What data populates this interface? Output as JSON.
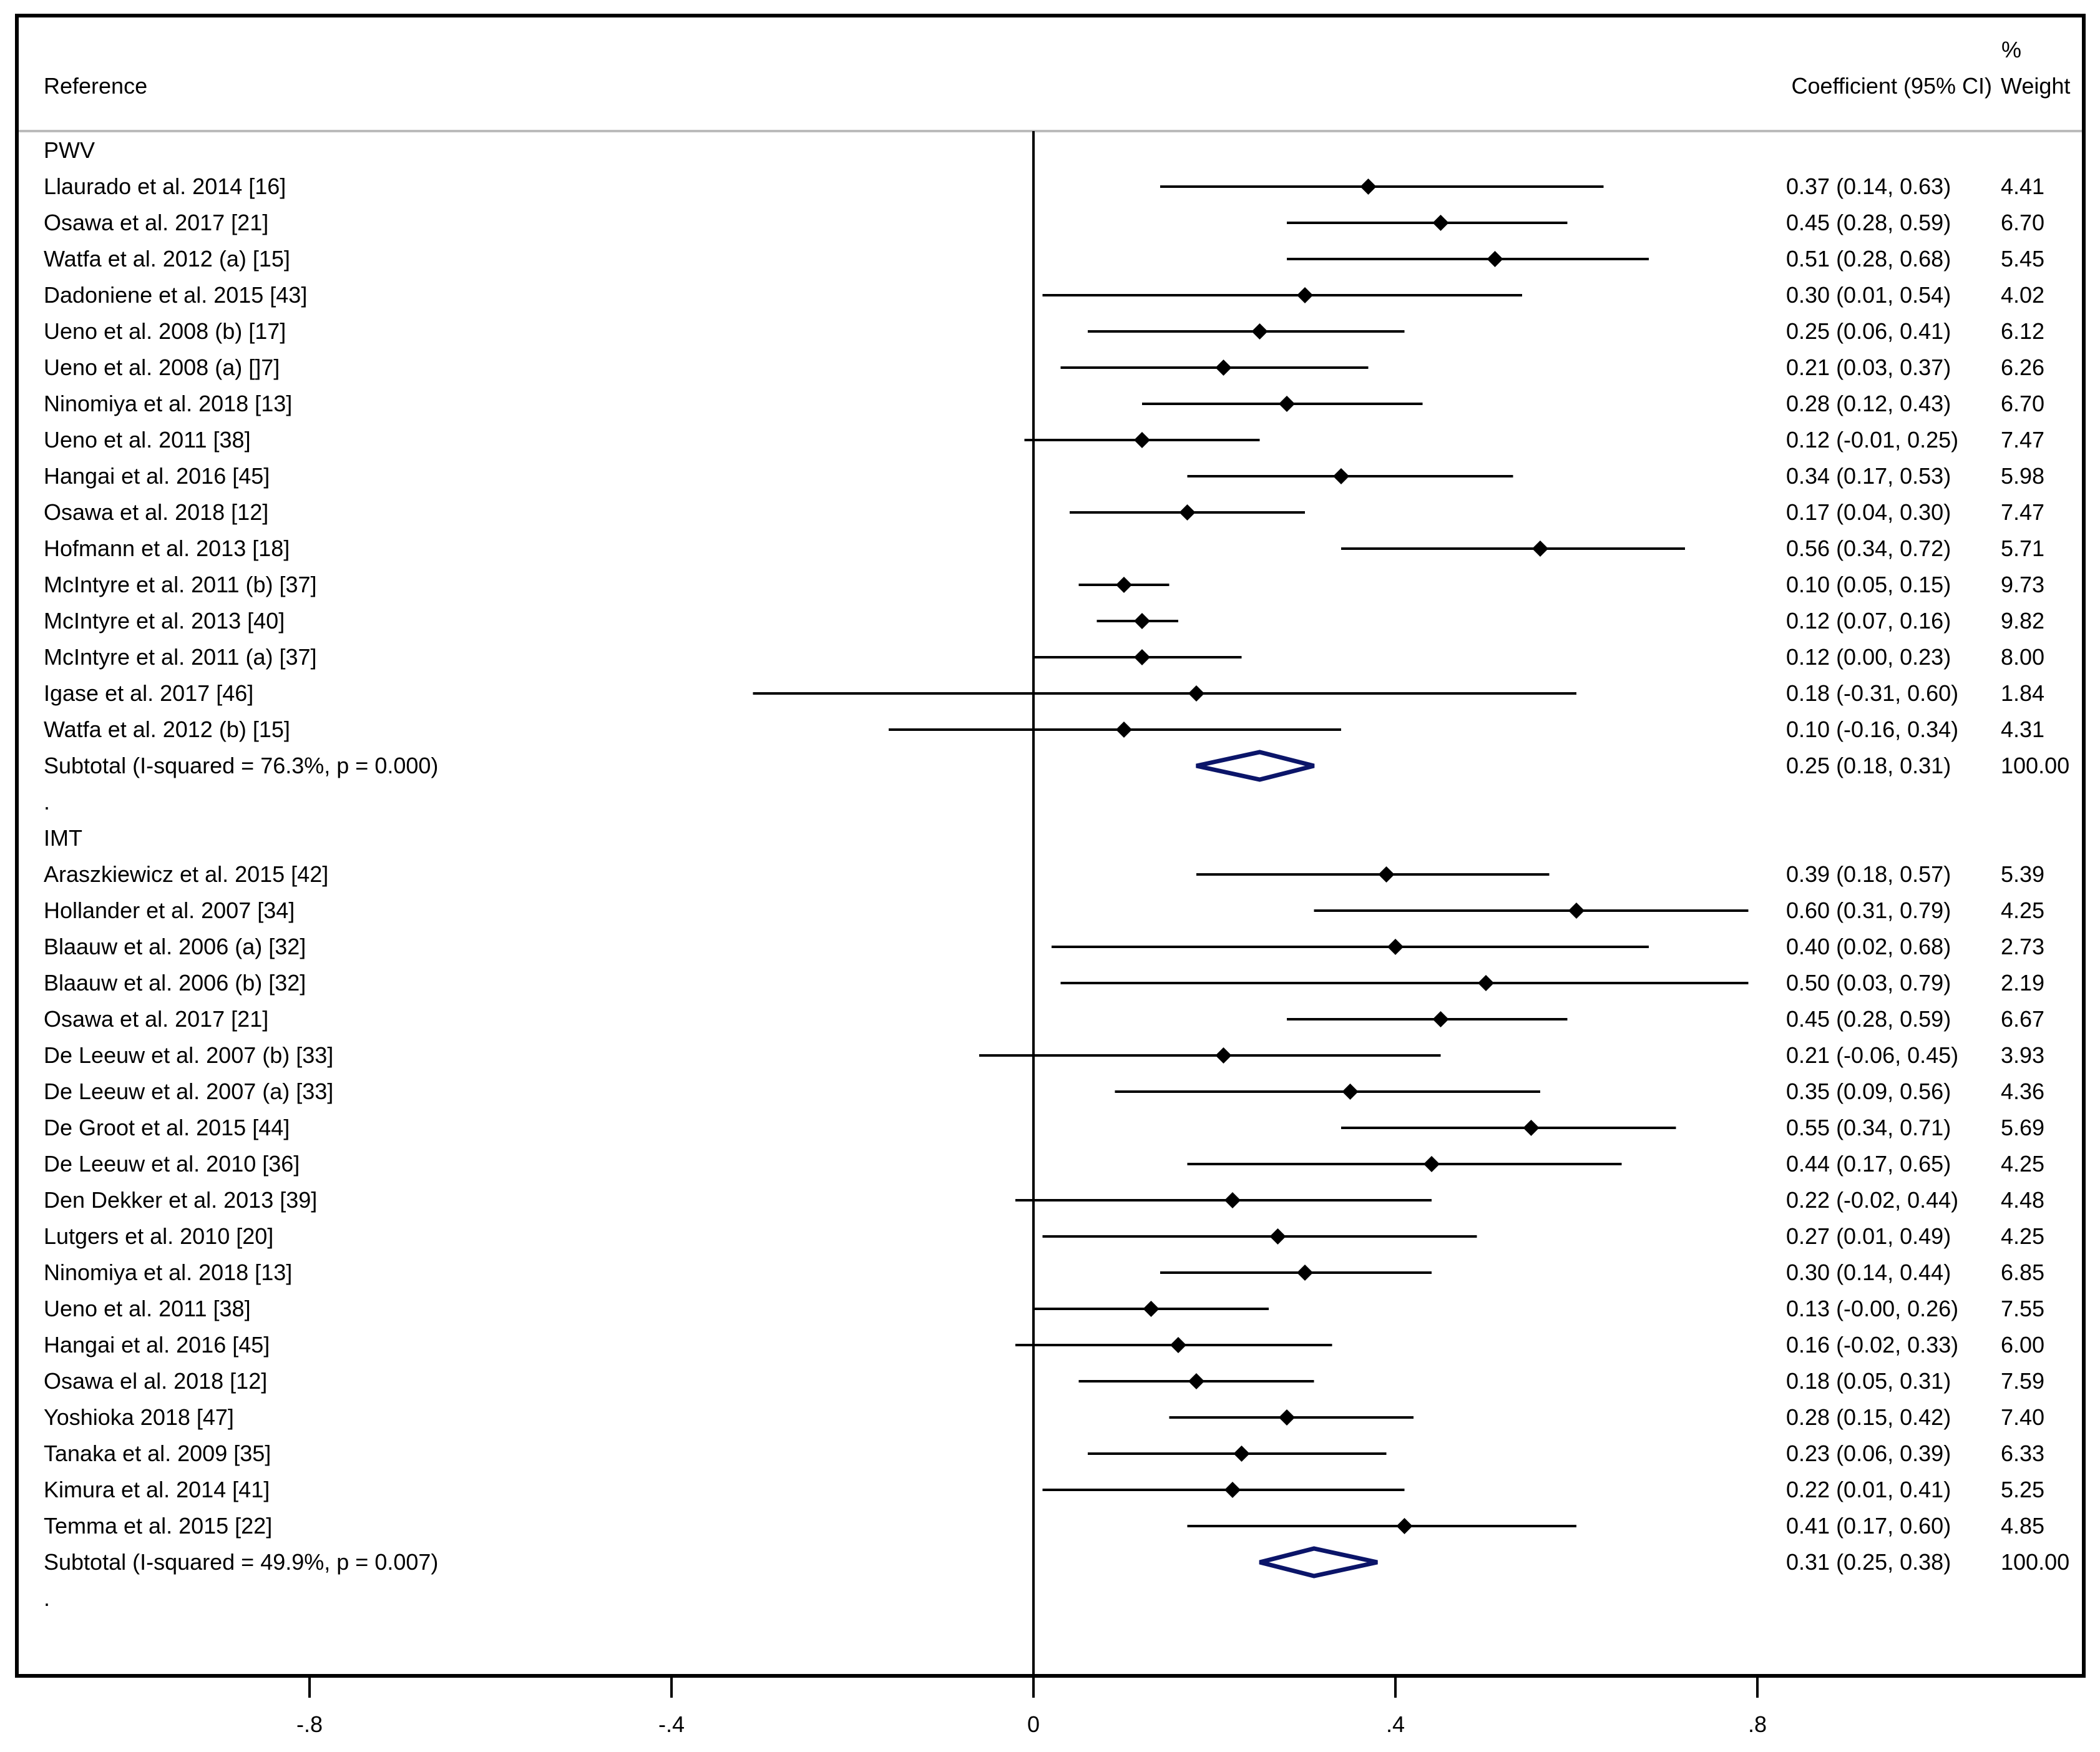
{
  "chart_data": {
    "type": "forest",
    "headers": {
      "reference": "Reference",
      "coefficient": "Coefficient (95% CI)",
      "weight_pct": "%",
      "weight": "Weight"
    },
    "xlim": [
      -1.12,
      1.16
    ],
    "xticks": [
      -0.8,
      -0.4,
      0,
      0.4,
      0.8
    ],
    "xtick_labels": [
      "-.8",
      "-.4",
      "0",
      ".4",
      ".8"
    ],
    "null_line": 0,
    "colors": {
      "marker": "#000000",
      "line": "#000000",
      "diamond": "#0b1569",
      "divider": "#bbbbbb"
    },
    "rows": [
      {
        "kind": "group",
        "label": "PWV"
      },
      {
        "kind": "study",
        "label": "Llaurado et al. 2014 [16]",
        "est": 0.37,
        "lo": 0.14,
        "hi": 0.63,
        "ci": "0.37 (0.14, 0.63)",
        "weight": "4.41"
      },
      {
        "kind": "study",
        "label": "Osawa et al. 2017 [21]",
        "est": 0.45,
        "lo": 0.28,
        "hi": 0.59,
        "ci": "0.45 (0.28, 0.59)",
        "weight": "6.70"
      },
      {
        "kind": "study",
        "label": "Watfa et al. 2012 (a) [15]",
        "est": 0.51,
        "lo": 0.28,
        "hi": 0.68,
        "ci": "0.51 (0.28, 0.68)",
        "weight": "5.45"
      },
      {
        "kind": "study",
        "label": "Dadoniene et al. 2015 [43]",
        "est": 0.3,
        "lo": 0.01,
        "hi": 0.54,
        "ci": "0.30 (0.01, 0.54)",
        "weight": "4.02"
      },
      {
        "kind": "study",
        "label": "Ueno et al. 2008 (b) [17]",
        "est": 0.25,
        "lo": 0.06,
        "hi": 0.41,
        "ci": "0.25 (0.06, 0.41)",
        "weight": "6.12"
      },
      {
        "kind": "study",
        "label": "Ueno et al. 2008 (a) []7]",
        "est": 0.21,
        "lo": 0.03,
        "hi": 0.37,
        "ci": "0.21 (0.03, 0.37)",
        "weight": "6.26"
      },
      {
        "kind": "study",
        "label": "Ninomiya et al. 2018 [13]",
        "est": 0.28,
        "lo": 0.12,
        "hi": 0.43,
        "ci": "0.28 (0.12, 0.43)",
        "weight": "6.70"
      },
      {
        "kind": "study",
        "label": "Ueno et al. 2011 [38]",
        "est": 0.12,
        "lo": -0.01,
        "hi": 0.25,
        "ci": "0.12 (-0.01, 0.25)",
        "weight": "7.47"
      },
      {
        "kind": "study",
        "label": "Hangai et al. 2016 [45]",
        "est": 0.34,
        "lo": 0.17,
        "hi": 0.53,
        "ci": "0.34 (0.17, 0.53)",
        "weight": "5.98"
      },
      {
        "kind": "study",
        "label": "Osawa et al. 2018 [12]",
        "est": 0.17,
        "lo": 0.04,
        "hi": 0.3,
        "ci": "0.17 (0.04, 0.30)",
        "weight": "7.47"
      },
      {
        "kind": "study",
        "label": "Hofmann et al. 2013 [18]",
        "est": 0.56,
        "lo": 0.34,
        "hi": 0.72,
        "ci": "0.56 (0.34, 0.72)",
        "weight": "5.71"
      },
      {
        "kind": "study",
        "label": "McIntyre et al. 2011 (b) [37]",
        "est": 0.1,
        "lo": 0.05,
        "hi": 0.15,
        "ci": "0.10 (0.05, 0.15)",
        "weight": "9.73"
      },
      {
        "kind": "study",
        "label": "McIntyre et al. 2013 [40]",
        "est": 0.12,
        "lo": 0.07,
        "hi": 0.16,
        "ci": "0.12 (0.07, 0.16)",
        "weight": "9.82"
      },
      {
        "kind": "study",
        "label": "McIntyre et al. 2011 (a) [37]",
        "est": 0.12,
        "lo": 0.0,
        "hi": 0.23,
        "ci": "0.12 (0.00, 0.23)",
        "weight": "8.00"
      },
      {
        "kind": "study",
        "label": "Igase et al. 2017 [46]",
        "est": 0.18,
        "lo": -0.31,
        "hi": 0.6,
        "ci": "0.18 (-0.31, 0.60)",
        "weight": "1.84"
      },
      {
        "kind": "study",
        "label": "Watfa et al. 2012 (b) [15]",
        "est": 0.1,
        "lo": -0.16,
        "hi": 0.34,
        "ci": "0.10 (-0.16, 0.34)",
        "weight": "4.31"
      },
      {
        "kind": "subtotal",
        "label": "Subtotal  (I-squared = 76.3%, p = 0.000)",
        "est": 0.25,
        "lo": 0.18,
        "hi": 0.31,
        "ci": "0.25 (0.18, 0.31)",
        "weight": "100.00"
      },
      {
        "kind": "spacer",
        "label": "."
      },
      {
        "kind": "group",
        "label": "IMT"
      },
      {
        "kind": "study",
        "label": "Araszkiewicz et al. 2015 [42]",
        "est": 0.39,
        "lo": 0.18,
        "hi": 0.57,
        "ci": "0.39 (0.18, 0.57)",
        "weight": "5.39"
      },
      {
        "kind": "study",
        "label": "Hollander et al. 2007 [34]",
        "est": 0.6,
        "lo": 0.31,
        "hi": 0.79,
        "ci": "0.60 (0.31, 0.79)",
        "weight": "4.25"
      },
      {
        "kind": "study",
        "label": "Blaauw et al. 2006 (a) [32]",
        "est": 0.4,
        "lo": 0.02,
        "hi": 0.68,
        "ci": "0.40 (0.02, 0.68)",
        "weight": "2.73"
      },
      {
        "kind": "study",
        "label": "Blaauw et al. 2006 (b) [32]",
        "est": 0.5,
        "lo": 0.03,
        "hi": 0.79,
        "ci": "0.50 (0.03, 0.79)",
        "weight": "2.19"
      },
      {
        "kind": "study",
        "label": "Osawa et al. 2017 [21]",
        "est": 0.45,
        "lo": 0.28,
        "hi": 0.59,
        "ci": "0.45 (0.28, 0.59)",
        "weight": "6.67"
      },
      {
        "kind": "study",
        "label": "De Leeuw et al. 2007 (b) [33]",
        "est": 0.21,
        "lo": -0.06,
        "hi": 0.45,
        "ci": "0.21 (-0.06, 0.45)",
        "weight": "3.93"
      },
      {
        "kind": "study",
        "label": "De Leeuw et al. 2007 (a) [33]",
        "est": 0.35,
        "lo": 0.09,
        "hi": 0.56,
        "ci": "0.35 (0.09, 0.56)",
        "weight": "4.36"
      },
      {
        "kind": "study",
        "label": "De Groot et al. 2015 [44]",
        "est": 0.55,
        "lo": 0.34,
        "hi": 0.71,
        "ci": "0.55 (0.34, 0.71)",
        "weight": "5.69"
      },
      {
        "kind": "study",
        "label": "De Leeuw et al. 2010 [36]",
        "est": 0.44,
        "lo": 0.17,
        "hi": 0.65,
        "ci": "0.44 (0.17, 0.65)",
        "weight": "4.25"
      },
      {
        "kind": "study",
        "label": "Den Dekker et al. 2013 [39]",
        "est": 0.22,
        "lo": -0.02,
        "hi": 0.44,
        "ci": "0.22 (-0.02, 0.44)",
        "weight": "4.48"
      },
      {
        "kind": "study",
        "label": "Lutgers et al. 2010 [20]",
        "est": 0.27,
        "lo": 0.01,
        "hi": 0.49,
        "ci": "0.27 (0.01, 0.49)",
        "weight": "4.25"
      },
      {
        "kind": "study",
        "label": "Ninomiya et al. 2018 [13]",
        "est": 0.3,
        "lo": 0.14,
        "hi": 0.44,
        "ci": "0.30 (0.14, 0.44)",
        "weight": "6.85"
      },
      {
        "kind": "study",
        "label": "Ueno et al. 2011 [38]",
        "est": 0.13,
        "lo": -0.0,
        "hi": 0.26,
        "ci": "0.13 (-0.00, 0.26)",
        "weight": "7.55"
      },
      {
        "kind": "study",
        "label": "Hangai et al. 2016 [45]",
        "est": 0.16,
        "lo": -0.02,
        "hi": 0.33,
        "ci": "0.16 (-0.02, 0.33)",
        "weight": "6.00"
      },
      {
        "kind": "study",
        "label": "Osawa el al. 2018 [12]",
        "est": 0.18,
        "lo": 0.05,
        "hi": 0.31,
        "ci": "0.18 (0.05, 0.31)",
        "weight": "7.59"
      },
      {
        "kind": "study",
        "label": "Yoshioka 2018 [47]",
        "est": 0.28,
        "lo": 0.15,
        "hi": 0.42,
        "ci": "0.28 (0.15, 0.42)",
        "weight": "7.40"
      },
      {
        "kind": "study",
        "label": "Tanaka et al. 2009 [35]",
        "est": 0.23,
        "lo": 0.06,
        "hi": 0.39,
        "ci": "0.23 (0.06, 0.39)",
        "weight": "6.33"
      },
      {
        "kind": "study",
        "label": "Kimura et al. 2014 [41]",
        "est": 0.22,
        "lo": 0.01,
        "hi": 0.41,
        "ci": "0.22 (0.01, 0.41)",
        "weight": "5.25"
      },
      {
        "kind": "study",
        "label": "Temma et al. 2015 [22]",
        "est": 0.41,
        "lo": 0.17,
        "hi": 0.6,
        "ci": "0.41 (0.17, 0.60)",
        "weight": "4.85"
      },
      {
        "kind": "subtotal",
        "label": "Subtotal  (I-squared = 49.9%, p = 0.007)",
        "est": 0.31,
        "lo": 0.25,
        "hi": 0.38,
        "ci": "0.31 (0.25, 0.38)",
        "weight": "100.00"
      },
      {
        "kind": "spacer",
        "label": "."
      }
    ]
  }
}
